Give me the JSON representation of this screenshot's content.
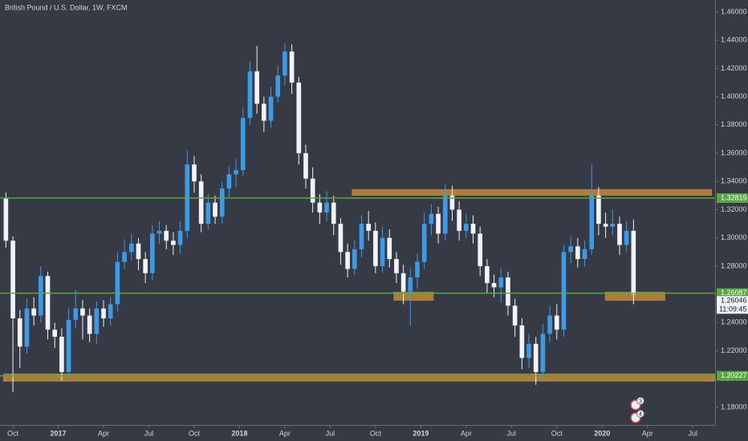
{
  "chart_data": {
    "type": "candlestick",
    "title": "British Pound / U.S. Dollar, 1W, FXCM",
    "up_color": "#3d9ae6",
    "down_color": "#f0f3fa",
    "x": [
      -2,
      0,
      2,
      4,
      6,
      8,
      10,
      12,
      14,
      16,
      18,
      20,
      22,
      24,
      26,
      28,
      30,
      32,
      34,
      36,
      38,
      40,
      42,
      44,
      46,
      48,
      50,
      52,
      54,
      56,
      58,
      60,
      62,
      64,
      66,
      68,
      70,
      72,
      74,
      76,
      78,
      80,
      82,
      84,
      86,
      88,
      90,
      92,
      94,
      96,
      98,
      100,
      102,
      104,
      106,
      108,
      110,
      112,
      114,
      116,
      118,
      120,
      122,
      124,
      126,
      128,
      130,
      132,
      134,
      136,
      138,
      140,
      142,
      144,
      146,
      148,
      150,
      152,
      154,
      156,
      158,
      160,
      162,
      164,
      166,
      168,
      170,
      172,
      174,
      176,
      178
    ],
    "open": [
      1.328,
      1.298,
      1.243,
      1.223,
      1.25,
      1.245,
      1.273,
      1.235,
      1.23,
      1.205,
      1.242,
      1.25,
      1.245,
      1.232,
      1.25,
      1.243,
      1.253,
      1.283,
      1.29,
      1.296,
      1.285,
      1.275,
      1.303,
      1.305,
      1.298,
      1.295,
      1.305,
      1.352,
      1.34,
      1.31,
      1.325,
      1.315,
      1.335,
      1.345,
      1.348,
      1.385,
      1.418,
      1.395,
      1.383,
      1.4,
      1.415,
      1.432,
      1.41,
      1.36,
      1.342,
      1.325,
      1.318,
      1.325,
      1.31,
      1.29,
      1.278,
      1.292,
      1.31,
      1.305,
      1.28,
      1.3,
      1.285,
      1.275,
      1.262,
      1.272,
      1.283,
      1.31,
      1.317,
      1.303,
      1.33,
      1.32,
      1.305,
      1.31,
      1.303,
      1.28,
      1.268,
      1.265,
      1.272,
      1.252,
      1.238,
      1.215,
      1.225,
      1.205,
      1.232,
      1.245,
      1.235,
      1.29,
      1.294,
      1.285,
      1.292,
      1.33,
      1.31,
      1.308,
      1.31,
      1.295,
      1.305
    ],
    "high": [
      1.332,
      1.301,
      1.249,
      1.257,
      1.258,
      1.28,
      1.276,
      1.24,
      1.236,
      1.25,
      1.263,
      1.256,
      1.25,
      1.255,
      1.256,
      1.258,
      1.29,
      1.299,
      1.303,
      1.3,
      1.29,
      1.309,
      1.312,
      1.309,
      1.304,
      1.312,
      1.362,
      1.358,
      1.345,
      1.331,
      1.33,
      1.34,
      1.351,
      1.356,
      1.392,
      1.425,
      1.436,
      1.4,
      1.407,
      1.422,
      1.438,
      1.437,
      1.414,
      1.366,
      1.35,
      1.331,
      1.333,
      1.33,
      1.314,
      1.296,
      1.298,
      1.316,
      1.319,
      1.311,
      1.308,
      1.306,
      1.29,
      1.281,
      1.279,
      1.289,
      1.318,
      1.324,
      1.322,
      1.338,
      1.337,
      1.326,
      1.317,
      1.316,
      1.308,
      1.285,
      1.274,
      1.279,
      1.276,
      1.257,
      1.243,
      1.232,
      1.23,
      1.239,
      1.252,
      1.253,
      1.295,
      1.301,
      1.3,
      1.298,
      1.352,
      1.336,
      1.318,
      1.32,
      1.315,
      1.312,
      1.313
    ],
    "low": [
      1.293,
      1.191,
      1.208,
      1.218,
      1.238,
      1.24,
      1.228,
      1.222,
      1.199,
      1.2,
      1.236,
      1.228,
      1.226,
      1.225,
      1.237,
      1.238,
      1.248,
      1.278,
      1.284,
      1.277,
      1.268,
      1.27,
      1.296,
      1.292,
      1.288,
      1.289,
      1.3,
      1.332,
      1.304,
      1.306,
      1.31,
      1.31,
      1.328,
      1.336,
      1.344,
      1.38,
      1.388,
      1.375,
      1.378,
      1.396,
      1.408,
      1.402,
      1.352,
      1.335,
      1.318,
      1.31,
      1.312,
      1.302,
      1.281,
      1.272,
      1.274,
      1.286,
      1.298,
      1.275,
      1.275,
      1.279,
      1.268,
      1.253,
      1.238,
      1.264,
      1.278,
      1.302,
      1.296,
      1.298,
      1.312,
      1.298,
      1.3,
      1.296,
      1.273,
      1.261,
      1.258,
      1.254,
      1.245,
      1.23,
      1.207,
      1.208,
      1.196,
      1.2,
      1.226,
      1.228,
      1.23,
      1.282,
      1.279,
      1.28,
      1.288,
      1.302,
      1.3,
      1.302,
      1.288,
      1.29,
      1.253
    ],
    "close": [
      1.298,
      1.243,
      1.223,
      1.25,
      1.245,
      1.273,
      1.235,
      1.23,
      1.205,
      1.242,
      1.25,
      1.245,
      1.232,
      1.25,
      1.243,
      1.253,
      1.283,
      1.29,
      1.296,
      1.285,
      1.275,
      1.303,
      1.305,
      1.298,
      1.295,
      1.305,
      1.352,
      1.34,
      1.31,
      1.325,
      1.315,
      1.335,
      1.345,
      1.348,
      1.385,
      1.418,
      1.395,
      1.383,
      1.4,
      1.415,
      1.432,
      1.41,
      1.36,
      1.342,
      1.325,
      1.318,
      1.325,
      1.31,
      1.29,
      1.278,
      1.292,
      1.31,
      1.305,
      1.28,
      1.3,
      1.285,
      1.275,
      1.262,
      1.272,
      1.283,
      1.31,
      1.317,
      1.303,
      1.33,
      1.32,
      1.305,
      1.31,
      1.303,
      1.28,
      1.268,
      1.265,
      1.272,
      1.252,
      1.238,
      1.215,
      1.225,
      1.205,
      1.232,
      1.245,
      1.235,
      1.29,
      1.294,
      1.285,
      1.292,
      1.33,
      1.31,
      1.308,
      1.31,
      1.295,
      1.305,
      1.26
    ],
    "xlim": [
      -3.7,
      201.4
    ],
    "xticks": [
      {
        "value": 0,
        "label": "Oct"
      },
      {
        "value": 13,
        "label": "2017"
      },
      {
        "value": 26,
        "label": "Apr"
      },
      {
        "value": 39,
        "label": "Jul"
      },
      {
        "value": 52,
        "label": "Oct"
      },
      {
        "value": 65,
        "label": "2018"
      },
      {
        "value": 78,
        "label": "Apr"
      },
      {
        "value": 91,
        "label": "Jul"
      },
      {
        "value": 104,
        "label": "Oct"
      },
      {
        "value": 117,
        "label": "2019"
      },
      {
        "value": 130,
        "label": "Apr"
      },
      {
        "value": 143,
        "label": "Jul"
      },
      {
        "value": 156,
        "label": "Oct"
      },
      {
        "value": 169,
        "label": "2020"
      },
      {
        "value": 182,
        "label": "Apr"
      },
      {
        "value": 195,
        "label": "Jul"
      }
    ],
    "ylim": [
      1.1675,
      1.4685
    ],
    "yticks": [
      {
        "value": 1.46,
        "label": "1.46000"
      },
      {
        "value": 1.44,
        "label": "1.44000"
      },
      {
        "value": 1.42,
        "label": "1.42000"
      },
      {
        "value": 1.4,
        "label": "1.40000"
      },
      {
        "value": 1.38,
        "label": "1.38000"
      },
      {
        "value": 1.36,
        "label": "1.36000"
      },
      {
        "value": 1.34,
        "label": "1.34000"
      },
      {
        "value": 1.32,
        "label": "1.32000"
      },
      {
        "value": 1.3,
        "label": "1.30000"
      },
      {
        "value": 1.28,
        "label": "1.28000"
      },
      {
        "value": 1.26,
        "label": "1.26000"
      },
      {
        "value": 1.24,
        "label": "1.24000"
      },
      {
        "value": 1.22,
        "label": "1.22000"
      },
      {
        "value": 1.2,
        "label": "1.20000"
      },
      {
        "value": 1.18,
        "label": "1.18000"
      }
    ],
    "levels": [
      1.32819,
      1.26087,
      1.20227
    ],
    "level_color": "#5aa642",
    "zones": [
      {
        "x": [
          97.2,
          200.5
        ],
        "y": [
          1.3299,
          1.3345
        ]
      },
      {
        "x": [
          109.2,
          120.7
        ],
        "y": [
          1.2555,
          1.2618
        ]
      },
      {
        "x": [
          169.8,
          187.1
        ],
        "y": [
          1.2555,
          1.2618
        ]
      },
      {
        "x": [
          -2.8,
          201.4
        ],
        "y": [
          1.1982,
          1.2039
        ]
      }
    ],
    "zone_color": "#b8863b",
    "last_price": 1.26046,
    "countdown": "11:09:45",
    "events": [
      "3",
      "4"
    ]
  }
}
